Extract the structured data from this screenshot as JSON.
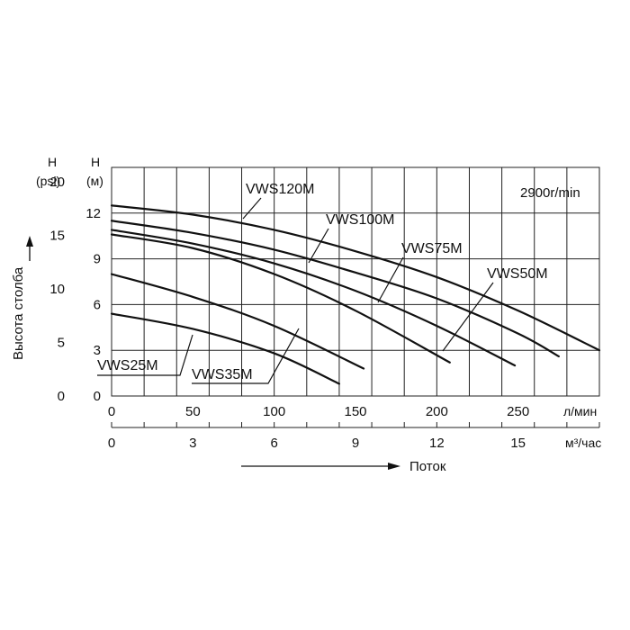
{
  "chart_data": {
    "type": "line",
    "speed_note": "2900r/min",
    "ylabel_rotated": "Высота столба",
    "flow_arrow_label": "Поток",
    "y_left_psi": {
      "header_top": "H",
      "header_bottom": "(psi)",
      "ticks": [
        "0",
        "5",
        "10",
        "15",
        "20"
      ],
      "tick_values": [
        0,
        5,
        10,
        15,
        20
      ]
    },
    "y_left_m": {
      "header_top": "H",
      "header_bottom": "(м)",
      "ticks": [
        "0",
        "3",
        "6",
        "9",
        "12"
      ],
      "tick_values": [
        0,
        3,
        6,
        9,
        12
      ],
      "ylim": [
        0,
        15
      ]
    },
    "x_lpm": {
      "unit": "л/мин",
      "ticks": [
        "0",
        "50",
        "100",
        "150",
        "200",
        "250"
      ],
      "tick_values": [
        0,
        50,
        100,
        150,
        200,
        250
      ],
      "xlim": [
        0,
        300
      ]
    },
    "x_m3h": {
      "unit": "м³/час",
      "ticks": [
        "0",
        "3",
        "6",
        "9",
        "12",
        "15"
      ],
      "tick_values": [
        0,
        3,
        6,
        9,
        12,
        15
      ]
    },
    "series": [
      {
        "name": "VWS25M",
        "x": [
          0,
          50,
          100,
          140
        ],
        "y": [
          5.4,
          4.4,
          2.8,
          0.8
        ]
      },
      {
        "name": "VWS35M",
        "x": [
          0,
          50,
          100,
          155
        ],
        "y": [
          8.0,
          6.5,
          4.6,
          1.8
        ]
      },
      {
        "name": "VWS50M",
        "x": [
          0,
          50,
          100,
          150,
          208
        ],
        "y": [
          10.6,
          9.7,
          8.0,
          5.6,
          2.2
        ]
      },
      {
        "name": "VWS75M",
        "x": [
          0,
          50,
          100,
          150,
          200,
          248
        ],
        "y": [
          10.9,
          10.0,
          8.7,
          6.9,
          4.6,
          2.0
        ]
      },
      {
        "name": "VWS100M",
        "x": [
          0,
          50,
          100,
          150,
          200,
          250,
          275
        ],
        "y": [
          11.5,
          10.7,
          9.6,
          8.1,
          6.4,
          4.1,
          2.6
        ]
      },
      {
        "name": "VWS120M",
        "x": [
          0,
          50,
          100,
          150,
          200,
          250,
          300
        ],
        "y": [
          12.5,
          11.9,
          10.9,
          9.5,
          7.8,
          5.6,
          3.0
        ]
      }
    ],
    "grid": true
  }
}
